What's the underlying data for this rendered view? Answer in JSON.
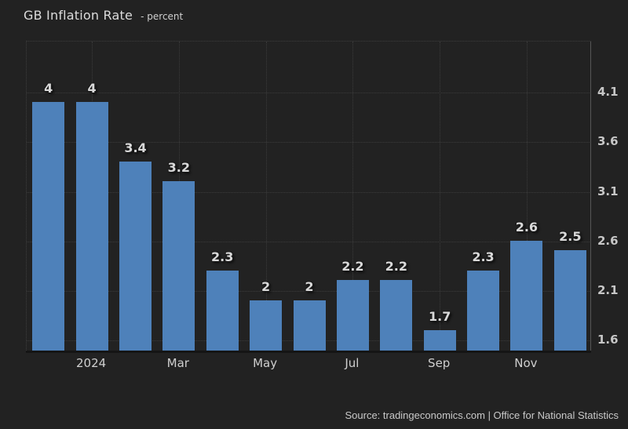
{
  "chart_data": {
    "type": "bar",
    "title": "GB Inflation Rate",
    "subtitle": "- percent",
    "categories": [
      "",
      "2024",
      "",
      "Mar",
      "",
      "May",
      "",
      "Jul",
      "",
      "Sep",
      "",
      "Nov",
      ""
    ],
    "values": [
      4,
      4,
      3.4,
      3.2,
      2.3,
      2,
      2,
      2.2,
      2.2,
      1.7,
      2.3,
      2.6,
      2.5
    ],
    "bar_labels": [
      "4",
      "4",
      "3.4",
      "3.2",
      "2.3",
      "2",
      "2",
      "2.2",
      "2.2",
      "1.7",
      "2.3",
      "2.6",
      "2.5"
    ],
    "x_tick_labels": [
      "2024",
      "Mar",
      "May",
      "Jul",
      "Sep",
      "Nov"
    ],
    "x_tick_slots": [
      1,
      3,
      5,
      7,
      9,
      11
    ],
    "y_ticks": [
      4.1,
      3.6,
      3.1,
      2.6,
      2.1,
      1.6
    ],
    "ylim": [
      1.49,
      4.615
    ],
    "xlabel": "",
    "ylabel": "percent",
    "grid": true,
    "legend_position": "none",
    "bar_color": "#4e81ba"
  },
  "footer": {
    "source": "Source: tradingeconomics.com | Office for National Statistics"
  },
  "colors": {
    "background": "#222222",
    "bar": "#4e81ba",
    "gridline": "#3b3b3b",
    "right_axis_line": "#565656",
    "bottom_axis_line": "#151515",
    "title_text": "#dcdcdc",
    "axis_text": "#c7c7c7",
    "value_label_text": "#d9d9d9"
  }
}
